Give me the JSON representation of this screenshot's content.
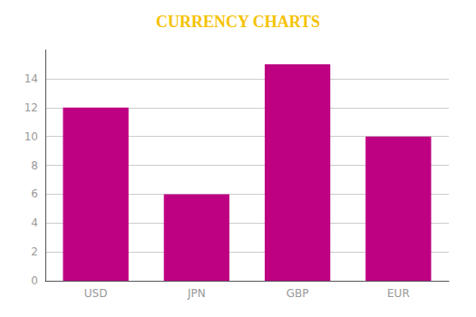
{
  "chart_data": {
    "type": "bar",
    "title": "CURRENCY CHARTS",
    "categories": [
      "USD",
      "JPN",
      "GBP",
      "EUR"
    ],
    "values": [
      12,
      6,
      15,
      10
    ],
    "color": "#BE0082",
    "ylim": [
      0,
      16
    ],
    "yticks": [
      0,
      2,
      4,
      6,
      8,
      10,
      12,
      14
    ],
    "grid": true
  }
}
